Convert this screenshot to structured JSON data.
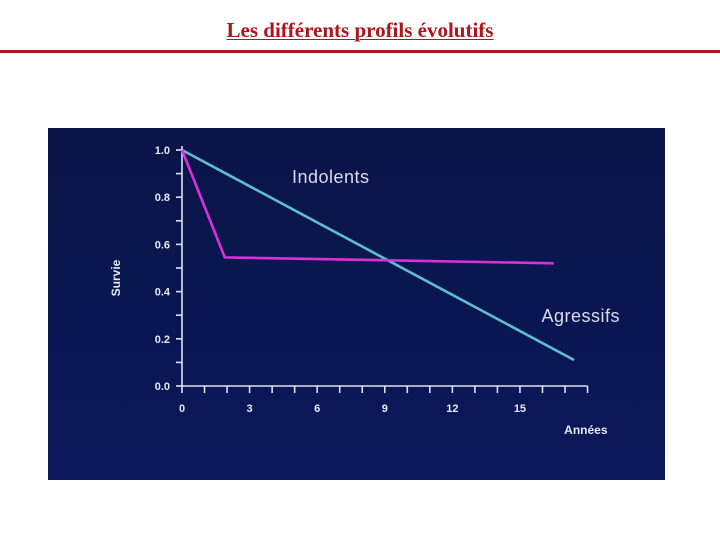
{
  "slide": {
    "title": "Les différents profils évolutifs"
  },
  "chart_data": {
    "type": "line",
    "xlabel": "Années",
    "ylabel": "Survie",
    "xlim": [
      0,
      18
    ],
    "ylim": [
      0,
      1.0
    ],
    "x_ticks": [
      0,
      3,
      6,
      9,
      12,
      15
    ],
    "x_tick_labels": [
      "0",
      "3",
      "6",
      "9",
      "12",
      "15"
    ],
    "y_ticks": [
      0,
      0.2,
      0.4,
      0.6,
      0.8,
      1.0
    ],
    "y_tick_labels": [
      "0.0",
      "0.2",
      "0.4",
      "0.6",
      "0.8",
      "1.0"
    ],
    "grid": false,
    "background_color": "#0b1550",
    "series": [
      {
        "name": "Indolents",
        "color": "#5bc0cf",
        "x": [
          0,
          17.4
        ],
        "y": [
          1.0,
          0.11
        ]
      },
      {
        "name": "Agressifs",
        "color": "#dd2fd8",
        "x": [
          0,
          1.9,
          16.5
        ],
        "y": [
          1.0,
          0.545,
          0.52
        ]
      }
    ]
  }
}
